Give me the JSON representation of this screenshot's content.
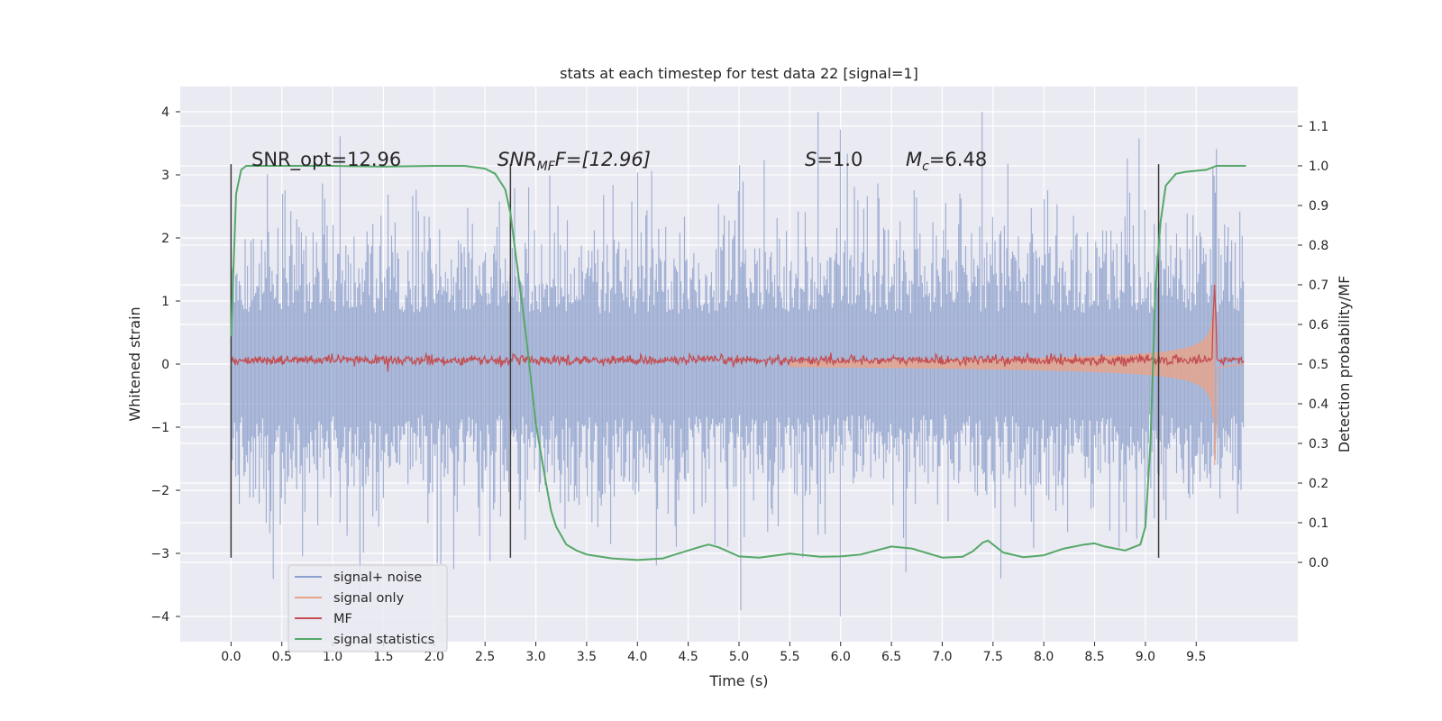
{
  "chart_data": {
    "type": "line",
    "title": "stats at each timestep for test data 22 [signal=1]",
    "xlabel": "Time (s)",
    "ylabel_left": "Whitened strain",
    "ylabel_right": "Detection probability/MF",
    "x_ticks": [
      "0.0",
      "0.5",
      "1.0",
      "1.5",
      "2.0",
      "2.5",
      "3.0",
      "3.5",
      "4.0",
      "4.5",
      "5.0",
      "5.5",
      "6.0",
      "6.5",
      "7.0",
      "7.5",
      "8.0",
      "8.5",
      "9.0",
      "9.5"
    ],
    "y_left_ticks": [
      "4",
      "3",
      "2",
      "1",
      "0",
      "−1",
      "−2",
      "−3",
      "−4"
    ],
    "y_right_ticks": [
      "1.1",
      "1.0",
      "0.9",
      "0.8",
      "0.7",
      "0.6",
      "0.5",
      "0.4",
      "0.3",
      "0.2",
      "0.1",
      "0.0"
    ],
    "xlim": [
      -0.5,
      10.5
    ],
    "ylim_left": [
      -4.4,
      4.4
    ],
    "ylim_right": [
      -0.2,
      1.2
    ],
    "grid": true,
    "legend_position": "lower-left",
    "annotations": {
      "snr_opt": "SNR_opt=12.96",
      "snr_mf_base": "SNR",
      "snr_mf_sub": "MF",
      "snr_mf_rest": "F=[12.96]",
      "s_label": "S",
      "s_rest": "=1.0",
      "mc_base": "M",
      "mc_sub": "c",
      "mc_rest": "=6.48"
    },
    "vertical_lines_x": [
      0.0,
      2.75,
      9.13
    ],
    "series": [
      {
        "name": "signal+ noise",
        "color": "#8da0cb",
        "x_range": [
          0.0,
          9.97
        ],
        "amplitude_typical": 1.3,
        "amplitude_max": 4.0
      },
      {
        "name": "signal only",
        "color": "#e8a48a",
        "chirp_start": 5.5,
        "chirp_peak_time": 9.68,
        "chirp_peak_amplitude": 1.3,
        "chirp_min": -1.6
      },
      {
        "name": "MF",
        "color": "#c44e52",
        "baseline_right_axis": 0.51,
        "peak_time": 9.68,
        "peak_right_axis": 0.7
      },
      {
        "name": "signal statistics",
        "color": "#55a868",
        "x": [
          0.0,
          0.05,
          0.1,
          0.15,
          0.2,
          0.3,
          0.5,
          1.0,
          1.5,
          2.0,
          2.3,
          2.5,
          2.6,
          2.7,
          2.75,
          2.8,
          2.9,
          3.0,
          3.1,
          3.15,
          3.2,
          3.3,
          3.4,
          3.5,
          3.75,
          4.0,
          4.25,
          4.5,
          4.6,
          4.7,
          4.8,
          5.0,
          5.2,
          5.5,
          5.8,
          6.0,
          6.2,
          6.5,
          6.7,
          7.0,
          7.2,
          7.3,
          7.4,
          7.45,
          7.6,
          7.8,
          8.0,
          8.2,
          8.4,
          8.5,
          8.6,
          8.8,
          8.95,
          9.0,
          9.05,
          9.1,
          9.15,
          9.2,
          9.3,
          9.4,
          9.6,
          9.7,
          9.8,
          9.99
        ],
        "y": [
          0.57,
          0.93,
          0.99,
          1.0,
          1.0,
          1.0,
          1.0,
          1.0,
          0.998,
          1.0,
          1.0,
          0.993,
          0.98,
          0.94,
          0.88,
          0.78,
          0.58,
          0.35,
          0.2,
          0.13,
          0.09,
          0.045,
          0.03,
          0.02,
          0.01,
          0.006,
          0.01,
          0.03,
          0.038,
          0.045,
          0.038,
          0.015,
          0.012,
          0.022,
          0.014,
          0.015,
          0.02,
          0.04,
          0.035,
          0.012,
          0.014,
          0.028,
          0.05,
          0.055,
          0.025,
          0.013,
          0.018,
          0.035,
          0.045,
          0.048,
          0.04,
          0.03,
          0.045,
          0.09,
          0.3,
          0.7,
          0.86,
          0.95,
          0.98,
          0.985,
          0.99,
          1.0,
          1.0,
          1.0
        ]
      }
    ]
  }
}
